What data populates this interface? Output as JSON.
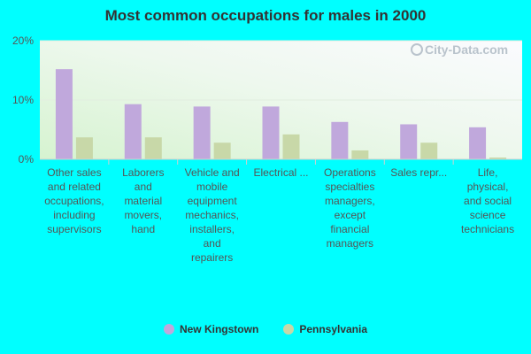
{
  "chart_data": {
    "type": "bar",
    "title": "Most common occupations for males in 2000",
    "categories": [
      [
        "Other sales",
        "and related",
        "occupations,",
        "including",
        "supervisors"
      ],
      [
        "Laborers",
        "and",
        "material",
        "movers,",
        "hand"
      ],
      [
        "Vehicle and",
        "mobile",
        "equipment",
        "mechanics,",
        "installers,",
        "and",
        "repairers"
      ],
      [
        "Electrical ..."
      ],
      [
        "Operations",
        "specialties",
        "managers,",
        "except",
        "financial",
        "managers"
      ],
      [
        "Sales repr..."
      ],
      [
        "Life,",
        "physical,",
        "and social",
        "science",
        "technicians"
      ]
    ],
    "series": [
      {
        "name": "New Kingstown",
        "color": "#c0a8dc",
        "values": [
          15.2,
          9.3,
          8.9,
          8.9,
          6.3,
          5.9,
          5.4
        ]
      },
      {
        "name": "Pennsylvania",
        "color": "#c8d8a8",
        "values": [
          3.7,
          3.7,
          2.8,
          4.2,
          1.5,
          2.8,
          0.3
        ]
      }
    ],
    "yticks": [
      "0%",
      "10%",
      "20%"
    ],
    "ylim": [
      0,
      20
    ],
    "grid": true,
    "legend_position": "bottom-center",
    "watermark": "City-Data.com"
  }
}
